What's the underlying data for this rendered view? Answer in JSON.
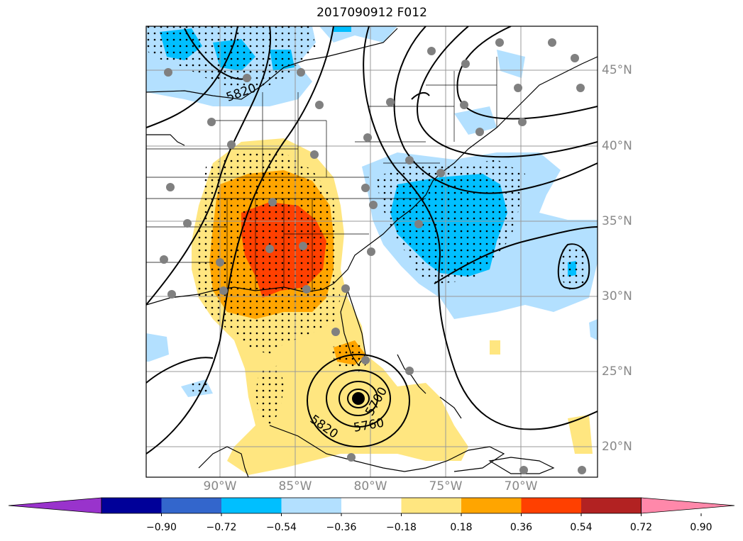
{
  "title": "2017090912 F012",
  "lat_labels": [
    "45°N",
    "40°N",
    "35°N",
    "30°N",
    "25°N",
    "20°N"
  ],
  "lon_labels": [
    "90°W",
    "85°W",
    "80°W",
    "75°W",
    "70°W"
  ],
  "contour_labels": [
    "5820",
    "5700",
    "5760",
    "5820"
  ],
  "colorbar": {
    "colors": [
      "#9933cc",
      "#000099",
      "#3366cc",
      "#00bfff",
      "#b3e0ff",
      "#ffffff",
      "#ffe680",
      "#ffa500",
      "#ff4000",
      "#b22222",
      "#ff88aa"
    ],
    "ticks": [
      "−0.90",
      "−0.72",
      "−0.54",
      "−0.36",
      "−0.18",
      "0.18",
      "0.36",
      "0.54",
      "0.72",
      "0.90"
    ]
  }
}
